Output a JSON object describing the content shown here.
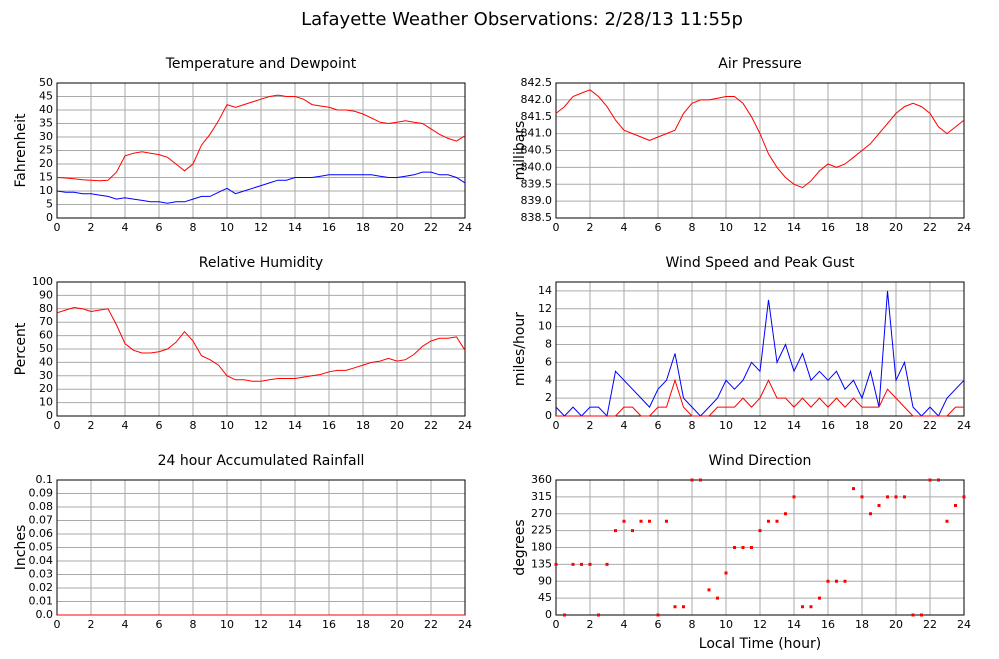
{
  "title": "Lafayette Weather Observations: 2/28/13 11:55p",
  "chart_data": [
    {
      "type": "line",
      "title": "Temperature and Dewpoint",
      "y_label": "Fahrenheit",
      "x": [
        0,
        0.5,
        1,
        1.5,
        2,
        2.5,
        3,
        3.5,
        4,
        4.5,
        5,
        5.5,
        6,
        6.5,
        7,
        7.5,
        8,
        8.5,
        9,
        9.5,
        10,
        10.5,
        11,
        11.5,
        12,
        12.5,
        13,
        13.5,
        14,
        14.5,
        15,
        15.5,
        16,
        16.5,
        17,
        17.5,
        18,
        18.5,
        19,
        19.5,
        20,
        20.5,
        21,
        21.5,
        22,
        22.5,
        23,
        23.5,
        24
      ],
      "series": [
        {
          "color": "#ff0000",
          "values": [
            15,
            14.8,
            14.5,
            14.2,
            14,
            13.8,
            14,
            17,
            23,
            24,
            24.5,
            24,
            23.5,
            22.5,
            20,
            17.5,
            20,
            27,
            31,
            36,
            42,
            41,
            42,
            43,
            44,
            45,
            45.5,
            45,
            45,
            44,
            42,
            41.5,
            41,
            40,
            40,
            39.5,
            38.5,
            37,
            35.5,
            35,
            35.5,
            36,
            35.5,
            35,
            33,
            31,
            29.5,
            28.5,
            30.5
          ]
        },
        {
          "color": "#0000ff",
          "values": [
            10,
            9.5,
            9.5,
            9,
            9,
            8.5,
            8,
            7,
            7.5,
            7,
            6.5,
            6,
            6,
            5.5,
            6,
            6,
            7,
            8,
            8,
            9.5,
            11,
            9,
            10,
            11,
            12,
            13,
            14,
            14,
            15,
            15,
            15,
            15.5,
            16,
            16,
            16,
            16,
            16,
            16,
            15.5,
            15,
            15,
            15.5,
            16,
            17,
            17,
            16,
            16,
            15,
            13
          ]
        }
      ],
      "xlim": [
        0,
        24
      ],
      "xticks": [
        0,
        2,
        4,
        6,
        8,
        10,
        12,
        14,
        16,
        18,
        20,
        22,
        24
      ],
      "ylim": [
        0,
        50
      ],
      "yticks": [
        0,
        5,
        10,
        15,
        20,
        25,
        30,
        35,
        40,
        45,
        50
      ],
      "grid": true
    },
    {
      "type": "line",
      "title": "Air Pressure",
      "y_label": "millibars",
      "x": [
        0,
        0.5,
        1,
        1.5,
        2,
        2.5,
        3,
        3.5,
        4,
        4.5,
        5,
        5.5,
        6,
        6.5,
        7,
        7.5,
        8,
        8.5,
        9,
        9.5,
        10,
        10.5,
        11,
        11.5,
        12,
        12.5,
        13,
        13.5,
        14,
        14.5,
        15,
        15.5,
        16,
        16.5,
        17,
        17.5,
        18,
        18.5,
        19,
        19.5,
        20,
        20.5,
        21,
        21.5,
        22,
        22.5,
        23,
        23.5,
        24
      ],
      "series": [
        {
          "color": "#ff0000",
          "values": [
            841.6,
            841.8,
            842.1,
            842.2,
            842.3,
            842.1,
            841.8,
            841.4,
            841.1,
            841,
            840.9,
            840.8,
            840.9,
            841,
            841.1,
            841.6,
            841.9,
            842,
            842,
            842.05,
            842.1,
            842.1,
            841.9,
            841.5,
            841,
            840.4,
            840,
            839.7,
            839.5,
            839.4,
            839.6,
            839.9,
            840.1,
            840,
            840.1,
            840.3,
            840.5,
            840.7,
            841,
            841.3,
            841.6,
            841.8,
            841.9,
            841.8,
            841.6,
            841.2,
            841,
            841.2,
            841.4
          ]
        }
      ],
      "xlim": [
        0,
        24
      ],
      "xticks": [
        0,
        2,
        4,
        6,
        8,
        10,
        12,
        14,
        16,
        18,
        20,
        22,
        24
      ],
      "ylim": [
        838.5,
        842.5
      ],
      "yticks": [
        838.5,
        {
          "value": 839,
          "label": "839.0"
        },
        839.5,
        {
          "value": 840,
          "label": "840.0"
        },
        840.5,
        {
          "value": 841,
          "label": "841.0"
        },
        841.5,
        {
          "value": 842,
          "label": "842.0"
        },
        842.5
      ],
      "grid": true
    },
    {
      "type": "line",
      "title": "Relative Humidity",
      "y_label": "Percent",
      "x": [
        0,
        0.5,
        1,
        1.5,
        2,
        2.5,
        3,
        3.5,
        4,
        4.5,
        5,
        5.5,
        6,
        6.5,
        7,
        7.5,
        8,
        8.5,
        9,
        9.5,
        10,
        10.5,
        11,
        11.5,
        12,
        12.5,
        13,
        13.5,
        14,
        14.5,
        15,
        15.5,
        16,
        16.5,
        17,
        17.5,
        18,
        18.5,
        19,
        19.5,
        20,
        20.5,
        21,
        21.5,
        22,
        22.5,
        23,
        23.5,
        24
      ],
      "series": [
        {
          "color": "#ff0000",
          "values": [
            77,
            79,
            81,
            80,
            78,
            79,
            80,
            68,
            54,
            49,
            47,
            47,
            48,
            50,
            55,
            63,
            56,
            45,
            42,
            38,
            30,
            27,
            27,
            26,
            26,
            27,
            28,
            28,
            28,
            29,
            30,
            31,
            33,
            34,
            34,
            36,
            38,
            40,
            41,
            43,
            41,
            42,
            46,
            52,
            56,
            58,
            58,
            59,
            49
          ]
        }
      ],
      "xlim": [
        0,
        24
      ],
      "xticks": [
        0,
        2,
        4,
        6,
        8,
        10,
        12,
        14,
        16,
        18,
        20,
        22,
        24
      ],
      "ylim": [
        0,
        100
      ],
      "yticks": [
        0,
        10,
        20,
        30,
        40,
        50,
        60,
        70,
        80,
        90,
        100
      ],
      "grid": true
    },
    {
      "type": "line",
      "title": "Wind Speed and Peak Gust",
      "y_label": "miles/hour",
      "x": [
        0,
        0.5,
        1,
        1.5,
        2,
        2.5,
        3,
        3.5,
        4,
        4.5,
        5,
        5.5,
        6,
        6.5,
        7,
        7.5,
        8,
        8.5,
        9,
        9.5,
        10,
        10.5,
        11,
        11.5,
        12,
        12.5,
        13,
        13.5,
        14,
        14.5,
        15,
        15.5,
        16,
        16.5,
        17,
        17.5,
        18,
        18.5,
        19,
        19.5,
        20,
        20.5,
        21,
        21.5,
        22,
        22.5,
        23,
        23.5,
        24
      ],
      "series": [
        {
          "color": "#0000ff",
          "values": [
            1,
            0,
            1,
            0,
            1,
            1,
            0,
            5,
            4,
            3,
            2,
            1,
            3,
            4,
            7,
            2,
            1,
            0,
            1,
            2,
            4,
            3,
            4,
            6,
            5,
            13,
            6,
            8,
            5,
            7,
            4,
            5,
            4,
            5,
            3,
            4,
            2,
            5,
            1,
            14,
            4,
            6,
            1,
            0,
            1,
            0,
            2,
            3,
            4
          ]
        },
        {
          "color": "#ff0000",
          "values": [
            0,
            0,
            0,
            0,
            0,
            0,
            0,
            0,
            1,
            1,
            0,
            0,
            1,
            1,
            4,
            1,
            0,
            0,
            0,
            1,
            1,
            1,
            2,
            1,
            2,
            4,
            2,
            2,
            1,
            2,
            1,
            2,
            1,
            2,
            1,
            2,
            1,
            1,
            1,
            3,
            2,
            1,
            0,
            0,
            0,
            0,
            0,
            1,
            1
          ]
        }
      ],
      "xlim": [
        0,
        24
      ],
      "xticks": [
        0,
        2,
        4,
        6,
        8,
        10,
        12,
        14,
        16,
        18,
        20,
        22,
        24
      ],
      "ylim": [
        0,
        15
      ],
      "yticks": [
        0,
        2,
        4,
        6,
        8,
        10,
        12,
        14
      ],
      "grid": true
    },
    {
      "type": "line",
      "title": "24 hour Accumulated Rainfall",
      "y_label": "Inches",
      "x": [
        0,
        24
      ],
      "series": [
        {
          "color": "#ff0000",
          "values": [
            0,
            0
          ]
        }
      ],
      "xlim": [
        0,
        24
      ],
      "xticks": [
        0,
        2,
        4,
        6,
        8,
        10,
        12,
        14,
        16,
        18,
        20,
        22,
        24
      ],
      "ylim": [
        0,
        0.1
      ],
      "yticks": [
        {
          "value": 0,
          "label": "0.0"
        },
        0.01,
        0.02,
        0.03,
        0.04,
        0.05,
        0.06,
        0.07,
        0.08,
        0.09,
        0.1
      ],
      "grid": true
    },
    {
      "type": "scatter",
      "title": "Wind Direction",
      "y_label": "degrees",
      "x_label": "Local Time (hour)",
      "x": [
        0,
        0.5,
        1,
        1.5,
        2,
        2.5,
        3,
        3.5,
        4,
        4.5,
        5,
        5.5,
        6,
        6.5,
        7,
        7.5,
        8,
        8.5,
        9,
        9.5,
        10,
        10.5,
        11,
        11.5,
        12,
        12.5,
        13,
        13.5,
        14,
        14.5,
        15,
        15.5,
        16,
        16.5,
        17,
        17.5,
        18,
        18.5,
        19,
        19.5,
        20,
        20.5,
        21,
        21.5,
        22,
        22.5,
        23,
        23.5,
        24
      ],
      "series": [
        {
          "color": "#ff0000",
          "values": [
            135,
            0,
            135,
            135,
            135,
            0,
            135,
            225,
            250,
            225,
            250,
            250,
            0,
            250,
            22,
            22,
            360,
            360,
            67,
            45,
            112,
            180,
            180,
            180,
            225,
            250,
            250,
            270,
            315,
            22,
            22,
            45,
            90,
            90,
            90,
            337,
            315,
            270,
            292,
            315,
            315,
            315,
            0,
            0,
            360,
            360,
            250,
            292,
            315
          ]
        }
      ],
      "xlim": [
        0,
        24
      ],
      "xticks": [
        0,
        2,
        4,
        6,
        8,
        10,
        12,
        14,
        16,
        18,
        20,
        22,
        24
      ],
      "ylim": [
        0,
        360
      ],
      "yticks": [
        0,
        45,
        90,
        135,
        180,
        225,
        270,
        315,
        360
      ],
      "grid": true
    }
  ]
}
